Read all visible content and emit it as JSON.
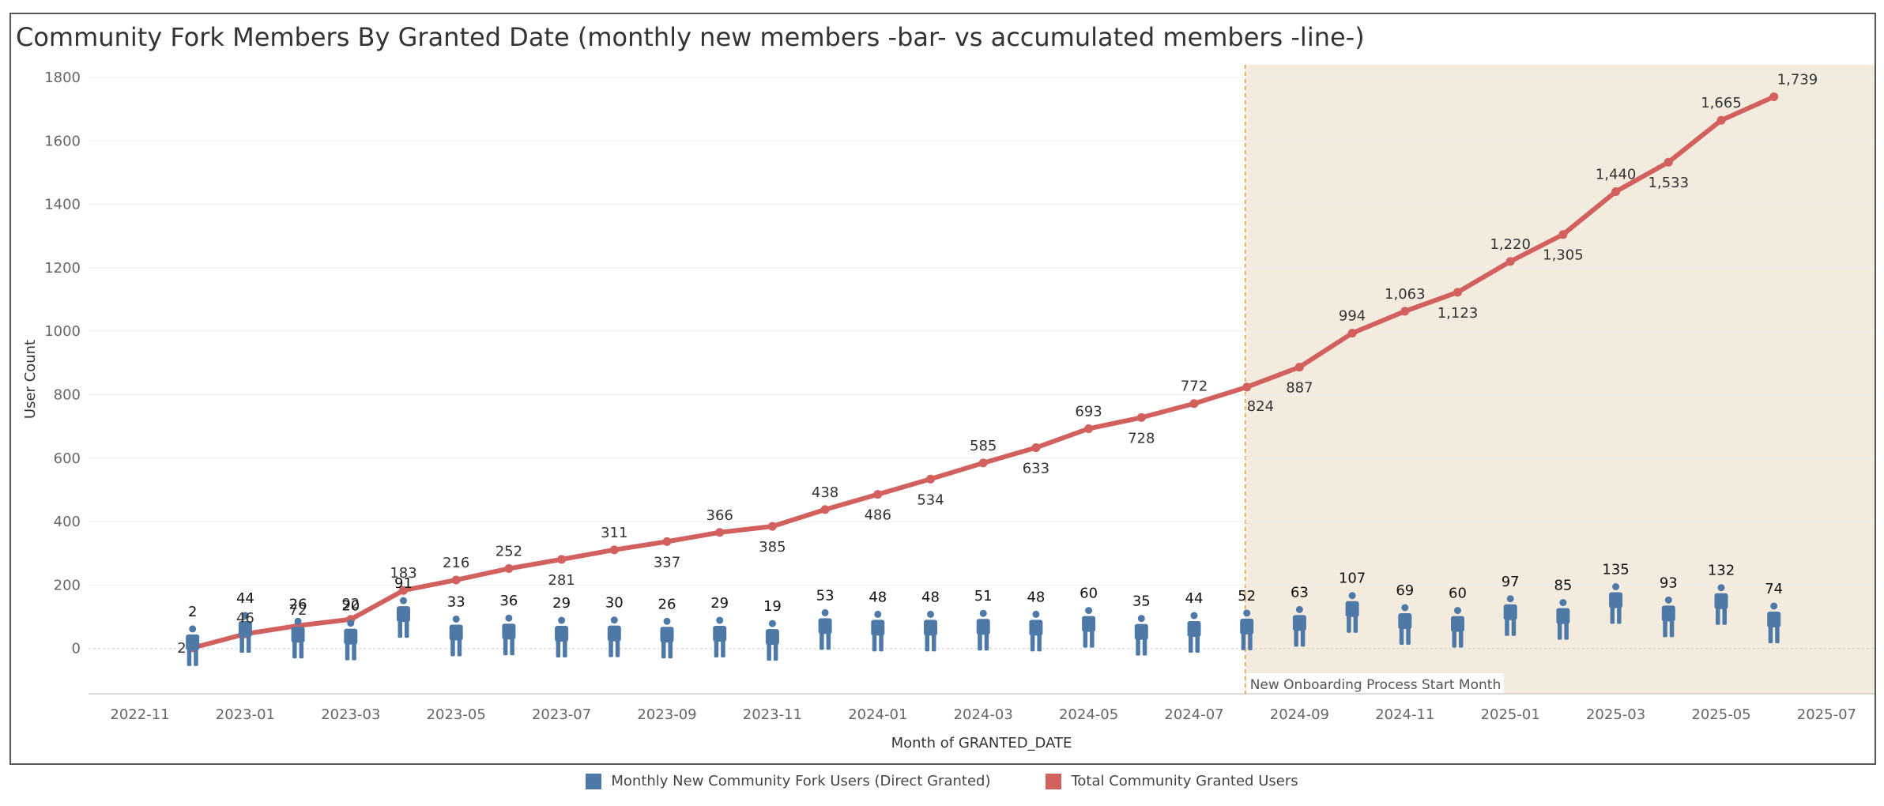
{
  "chart_data": {
    "type": "bar+line",
    "title": "Community Fork Members By Granted Date (monthly new members -bar- vs accumulated members -line-)",
    "xlabel": "Month of GRANTED_DATE",
    "ylabel": "User Count",
    "ylim": [
      -150,
      1800
    ],
    "yticks": [
      0,
      200,
      400,
      600,
      800,
      1000,
      1200,
      1400,
      1600,
      1800
    ],
    "xticks": [
      "2022-11",
      "2023-01",
      "2023-03",
      "2023-05",
      "2023-07",
      "2023-09",
      "2023-11",
      "2024-01",
      "2024-03",
      "2024-05",
      "2024-07",
      "2024-09",
      "2024-11",
      "2025-01",
      "2025-03",
      "2025-05",
      "2025-07"
    ],
    "categories": [
      "2022-12",
      "2023-01",
      "2023-02",
      "2023-03",
      "2023-04",
      "2023-05",
      "2023-06",
      "2023-07",
      "2023-08",
      "2023-09",
      "2023-10",
      "2023-11",
      "2023-12",
      "2024-01",
      "2024-02",
      "2024-03",
      "2024-04",
      "2024-05",
      "2024-06",
      "2024-07",
      "2024-08",
      "2024-09",
      "2024-10",
      "2024-11",
      "2024-12",
      "2025-01",
      "2025-02",
      "2025-03",
      "2025-04",
      "2025-05",
      "2025-06"
    ],
    "series": [
      {
        "name": "Monthly New Community Fork Users (Direct Granted)",
        "type": "pictogram",
        "color": "#4e79a7",
        "values": [
          2,
          44,
          26,
          20,
          91,
          33,
          36,
          29,
          30,
          26,
          29,
          19,
          53,
          48,
          48,
          51,
          48,
          60,
          35,
          44,
          52,
          63,
          107,
          69,
          60,
          97,
          85,
          135,
          93,
          132,
          74
        ]
      },
      {
        "name": "Total Community Granted Users",
        "type": "line",
        "color": "#d1605e",
        "values": [
          2,
          46,
          72,
          92,
          183,
          216,
          252,
          281,
          311,
          337,
          366,
          385,
          438,
          486,
          534,
          585,
          633,
          693,
          728,
          772,
          824,
          887,
          994,
          1063,
          1123,
          1220,
          1305,
          1440,
          1533,
          1665,
          1739
        ],
        "labels": [
          "2",
          "46",
          "72",
          "92",
          "183",
          "216",
          "252",
          "281",
          "311",
          "337",
          "366",
          "385",
          "438",
          "486",
          "534",
          "585",
          "633",
          "693",
          "728",
          "772",
          "824",
          "887",
          "994",
          "1,063",
          "1,123",
          "1,220",
          "1,305",
          "1,440",
          "1,533",
          "1,665",
          "1,739"
        ]
      }
    ],
    "annotation": {
      "text": "New Onboarding Process Start Month",
      "start_month": "2024-08",
      "band_color": "#f3ebdd",
      "line_color": "#e0a040"
    }
  },
  "legend": {
    "items": [
      {
        "label": "Monthly New Community Fork Users (Direct Granted)",
        "color": "#4e79a7"
      },
      {
        "label": "Total Community Granted Users",
        "color": "#d1605e"
      }
    ]
  }
}
